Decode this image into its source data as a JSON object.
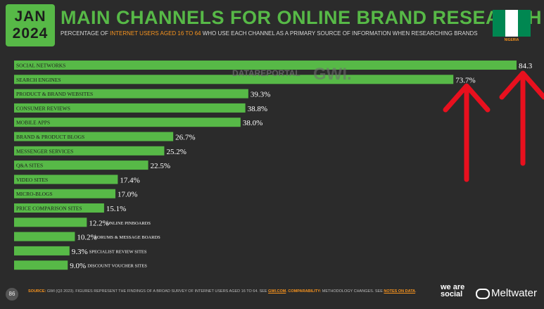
{
  "header": {
    "month": "JAN",
    "year": "2024",
    "title": "MAIN CHANNELS FOR ONLINE BRAND RESEARCH",
    "subtitle_pre": "PERCENTAGE OF ",
    "subtitle_highlight": "INTERNET USERS AGED 16 TO 64",
    "subtitle_post": " WHO USE EACH CHANNEL AS A PRIMARY SOURCE OF INFORMATION WHEN RESEARCHING BRANDS",
    "country": "NIGERIA"
  },
  "watermark": {
    "left": "DATAREPORTAL",
    "right": "GWI."
  },
  "footer": {
    "page_number": "86",
    "source_label": "SOURCE:",
    "source_text": " GWI (Q3 2023). FIGURES REPRESENT THE FINDINGS OF A BROAD SURVEY OF INTERNET USERS AGED 16 TO 64. SEE ",
    "source_link": "GWI.COM",
    "comparability_label": ". COMPARABILITY:",
    "comparability_text": " METHODOLOGY CHANGES. SEE ",
    "notes_link": "NOTES ON DATA",
    "end": ".",
    "brand1": "we are social",
    "brand2": "Meltwater"
  },
  "colors": {
    "accent": "#57b947",
    "highlight": "#f7931e",
    "background": "#2b2b2b",
    "annotation": "#e8101e"
  },
  "chart_data": {
    "type": "bar",
    "orientation": "horizontal",
    "categories": [
      "SOCIAL NETWORKS",
      "SEARCH ENGINES",
      "PRODUCT & BRAND WEBSITES",
      "CONSUMER REVIEWS",
      "MOBILE APPS",
      "BRAND & PRODUCT BLOGS",
      "MESSENGER SERVICES",
      "Q&A SITES",
      "VIDEO SITES",
      "MICRO-BLOGS",
      "PRICE COMPARISON SITES",
      "ONLINE PINBOARDS",
      "FORUMS & MESSAGE BOARDS",
      "SPECIALIST REVIEW SITES",
      "DISCOUNT VOUCHER SITES"
    ],
    "values": [
      84.3,
      73.7,
      39.3,
      38.8,
      38.0,
      26.7,
      25.2,
      22.5,
      17.4,
      17.0,
      15.1,
      12.2,
      10.2,
      9.3,
      9.0
    ],
    "value_labels": [
      "84.3",
      "73.7%",
      "39.3%",
      "38.8%",
      "38.0%",
      "26.7%",
      "25.2%",
      "22.5%",
      "17.4%",
      "17.0%",
      "15.1%",
      "12.2%",
      "10.2%",
      "9.3%",
      "9.0%"
    ],
    "xlim": [
      0,
      84.3
    ],
    "annotations": [
      "red upward arrow under 73.7%",
      "red upward arrow under 84.3"
    ]
  }
}
